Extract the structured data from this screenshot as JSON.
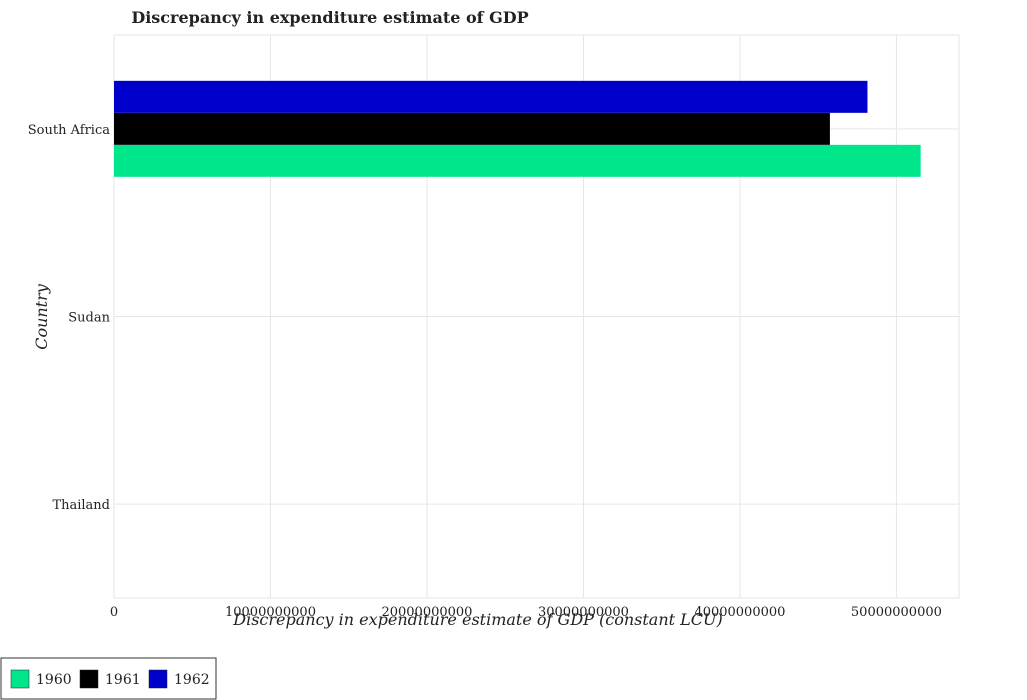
{
  "chart_data": {
    "type": "bar",
    "orientation": "horizontal",
    "title": "Discrepancy in expenditure estimate of GDP",
    "xlabel": "Discrepancy in expenditure estimate of GDP (constant LCU)",
    "ylabel": "Country",
    "categories": [
      "South Africa",
      "Sudan",
      "Thailand"
    ],
    "series": [
      {
        "name": "1960",
        "color": "#00e68a",
        "values": [
          51550000000,
          0,
          0
        ]
      },
      {
        "name": "1961",
        "color": "#000000",
        "values": [
          45750000000,
          0,
          0
        ]
      },
      {
        "name": "1962",
        "color": "#0000cc",
        "values": [
          48150000000,
          0,
          0
        ]
      }
    ],
    "xlim": [
      0,
      54000000000
    ],
    "xticks": [
      0,
      10000000000,
      20000000000,
      30000000000,
      40000000000,
      50000000000
    ],
    "xtick_labels": [
      "0",
      "10000000000",
      "20000000000",
      "30000000000",
      "40000000000",
      "50000000000"
    ],
    "grid": true,
    "legend_position": "bottom-left"
  }
}
